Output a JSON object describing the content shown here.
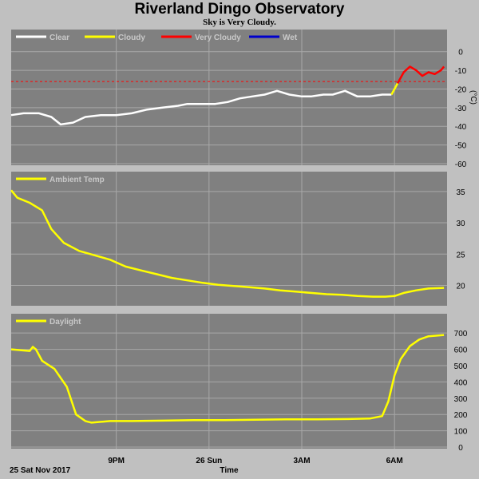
{
  "header": {
    "title": "Riverland Dingo Observatory",
    "subtitle": "Sky is Very Cloudy."
  },
  "footer": {
    "date_label": "25 Sat Nov 2017",
    "x_title": "Time"
  },
  "colors": {
    "background": "#c0c0c0",
    "plot_bg": "#808080",
    "grid": "#a8a8a8",
    "clear": "#ffffff",
    "cloudy": "#ffff00",
    "very_cloudy": "#ff0000",
    "wet": "#0000cc",
    "threshold": "#ff0000"
  },
  "chart_data": [
    {
      "type": "line",
      "name": "sky",
      "legend": [
        "Clear",
        "Cloudy",
        "Very Cloudy",
        "Wet"
      ],
      "ylabel": "(°C)",
      "ylim": [
        -60,
        5
      ],
      "yticks": [
        0,
        -10,
        -20,
        -30,
        -40,
        -50,
        -60
      ],
      "xlim": [
        17.6,
        31.7
      ],
      "threshold": -16,
      "grid": true,
      "series": [
        {
          "legend_index": 0,
          "x": [
            17.6,
            18.0,
            18.5,
            18.9,
            19.2,
            19.6,
            20.0,
            20.5,
            21.0,
            21.5,
            22.0,
            22.5,
            23.0,
            23.3,
            23.8,
            24.2,
            24.6,
            25.0,
            25.4,
            25.8,
            26.2,
            26.6,
            27.0,
            27.3,
            27.7,
            28.0,
            28.4,
            28.8,
            29.2,
            29.6,
            29.9
          ],
          "y": [
            -34,
            -33,
            -33,
            -35,
            -39,
            -38,
            -35,
            -34,
            -34,
            -33,
            -31,
            -30,
            -29,
            -28,
            -28,
            -28,
            -27,
            -25,
            -24,
            -23,
            -21,
            -23,
            -24,
            -24,
            -23,
            -23,
            -21,
            -24,
            -24,
            -23,
            -23
          ]
        },
        {
          "legend_index": 1,
          "x": [
            29.9,
            30.0,
            30.1
          ],
          "y": [
            -23,
            -20,
            -17
          ]
        },
        {
          "legend_index": 2,
          "x": [
            30.1,
            30.3,
            30.5,
            30.7,
            30.9,
            31.1,
            31.3,
            31.5,
            31.6
          ],
          "y": [
            -17,
            -11,
            -8,
            -10,
            -13,
            -11,
            -12,
            -10,
            -8
          ]
        }
      ]
    },
    {
      "type": "line",
      "name": "ambient",
      "legend": [
        "Ambient Temp"
      ],
      "ylim": [
        17,
        36
      ],
      "yticks": [
        35,
        30,
        25,
        20
      ],
      "xlim": [
        17.6,
        31.7
      ],
      "grid": true,
      "series": [
        {
          "legend_index": 0,
          "x": [
            17.6,
            17.8,
            18.2,
            18.6,
            18.9,
            19.3,
            19.8,
            20.3,
            20.8,
            21.3,
            21.8,
            22.3,
            22.8,
            23.3,
            23.8,
            24.3,
            24.8,
            25.3,
            25.8,
            26.3,
            26.8,
            27.3,
            27.8,
            28.3,
            28.8,
            29.3,
            29.7,
            30.0,
            30.3,
            30.7,
            31.1,
            31.6
          ],
          "y": [
            35.2,
            34,
            33.2,
            32,
            29,
            26.8,
            25.5,
            24.8,
            24.1,
            23,
            22.4,
            21.8,
            21.2,
            20.8,
            20.4,
            20.1,
            19.9,
            19.7,
            19.5,
            19.2,
            19,
            18.8,
            18.6,
            18.5,
            18.3,
            18.2,
            18.2,
            18.3,
            18.8,
            19.2,
            19.5,
            19.6
          ]
        }
      ]
    },
    {
      "type": "line",
      "name": "daylight",
      "legend": [
        "Daylight"
      ],
      "ylim": [
        0,
        740
      ],
      "yticks": [
        700,
        600,
        500,
        400,
        300,
        200,
        100,
        0
      ],
      "xlim": [
        17.6,
        31.7
      ],
      "x_ticks": [
        {
          "x": 21,
          "label": "9PM"
        },
        {
          "x": 24,
          "label": "26 Sun"
        },
        {
          "x": 27,
          "label": "3AM"
        },
        {
          "x": 30,
          "label": "6AM"
        }
      ],
      "grid": true,
      "series": [
        {
          "legend_index": 0,
          "x": [
            17.6,
            18.2,
            18.3,
            18.4,
            18.6,
            19.0,
            19.4,
            19.7,
            20.0,
            20.2,
            20.5,
            20.8,
            21.5,
            22.5,
            23.5,
            24.5,
            25.5,
            26.5,
            27.5,
            28.5,
            29.2,
            29.6,
            29.8,
            30.0,
            30.2,
            30.5,
            30.8,
            31.1,
            31.6
          ],
          "y": [
            600,
            590,
            615,
            600,
            530,
            480,
            370,
            200,
            160,
            150,
            155,
            160,
            160,
            162,
            165,
            165,
            168,
            170,
            170,
            172,
            175,
            190,
            280,
            440,
            540,
            620,
            660,
            680,
            688
          ]
        }
      ]
    }
  ]
}
